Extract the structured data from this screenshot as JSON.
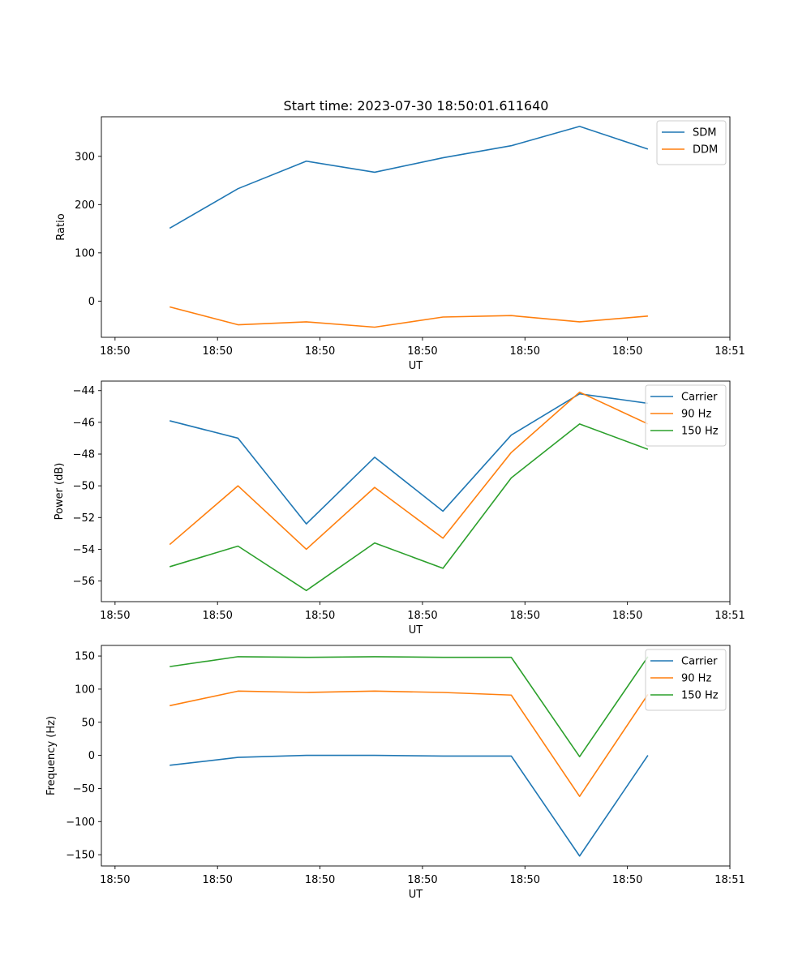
{
  "figure": {
    "title": "Start time: 2023-07-30 18:50:01.611640"
  },
  "chart_data": [
    {
      "type": "line",
      "ylabel": "Ratio",
      "xlabel": "UT",
      "xlim": [
        0,
        9.2
      ],
      "ylim": [
        -75,
        382
      ],
      "yticks": [
        0,
        100,
        200,
        300
      ],
      "xticks": [
        0.2,
        1.7,
        3.2,
        4.7,
        6.2,
        7.7,
        9.2
      ],
      "xtick_labels": [
        "18:50",
        "18:50",
        "18:50",
        "18:50",
        "18:50",
        "18:50",
        "18:51"
      ],
      "x": [
        1,
        2,
        3,
        4,
        5,
        6,
        7,
        8
      ],
      "legend_position": "top-right",
      "series": [
        {
          "name": "SDM",
          "color": "#1f77b4",
          "values": [
            151,
            233,
            290,
            267,
            297,
            322,
            362,
            315
          ]
        },
        {
          "name": "DDM",
          "color": "#ff7f0e",
          "values": [
            -12,
            -49,
            -43,
            -54,
            -33,
            -30,
            -43,
            -31
          ]
        }
      ]
    },
    {
      "type": "line",
      "ylabel": "Power (dB)",
      "xlabel": "UT",
      "xlim": [
        0,
        9.2
      ],
      "ylim": [
        -57.3,
        -43.4
      ],
      "yticks": [
        -56,
        -54,
        -52,
        -50,
        -48,
        -46,
        -44
      ],
      "xticks": [
        0.2,
        1.7,
        3.2,
        4.7,
        6.2,
        7.7,
        9.2
      ],
      "xtick_labels": [
        "18:50",
        "18:50",
        "18:50",
        "18:50",
        "18:50",
        "18:50",
        "18:51"
      ],
      "x": [
        1,
        2,
        3,
        4,
        5,
        6,
        7,
        8
      ],
      "legend_position": "top-right",
      "series": [
        {
          "name": "Carrier",
          "color": "#1f77b4",
          "values": [
            -45.9,
            -47.0,
            -52.4,
            -48.2,
            -51.6,
            -46.8,
            -44.2,
            -44.8
          ]
        },
        {
          "name": "90 Hz",
          "color": "#ff7f0e",
          "values": [
            -53.7,
            -50.0,
            -54.0,
            -50.1,
            -53.3,
            -47.9,
            -44.1,
            -46.1
          ]
        },
        {
          "name": "150 Hz",
          "color": "#2ca02c",
          "values": [
            -55.1,
            -53.8,
            -56.6,
            -53.6,
            -55.2,
            -49.5,
            -46.1,
            -47.7
          ]
        }
      ]
    },
    {
      "type": "line",
      "ylabel": "Frequency (Hz)",
      "xlabel": "UT",
      "xlim": [
        0,
        9.2
      ],
      "ylim": [
        -167,
        166
      ],
      "yticks": [
        -150,
        -100,
        -50,
        0,
        50,
        100,
        150
      ],
      "xticks": [
        0.2,
        1.7,
        3.2,
        4.7,
        6.2,
        7.7,
        9.2
      ],
      "xtick_labels": [
        "18:50",
        "18:50",
        "18:50",
        "18:50",
        "18:50",
        "18:50",
        "18:51"
      ],
      "x": [
        1,
        2,
        3,
        4,
        5,
        6,
        7,
        8
      ],
      "legend_position": "top-right",
      "series": [
        {
          "name": "Carrier",
          "color": "#1f77b4",
          "values": [
            -15,
            -3,
            0,
            0,
            -1,
            -1,
            -152,
            0
          ]
        },
        {
          "name": "90 Hz",
          "color": "#ff7f0e",
          "values": [
            75,
            97,
            95,
            97,
            95,
            91,
            -62,
            92
          ]
        },
        {
          "name": "150 Hz",
          "color": "#2ca02c",
          "values": [
            134,
            149,
            148,
            149,
            148,
            148,
            -2,
            149
          ]
        }
      ]
    }
  ]
}
